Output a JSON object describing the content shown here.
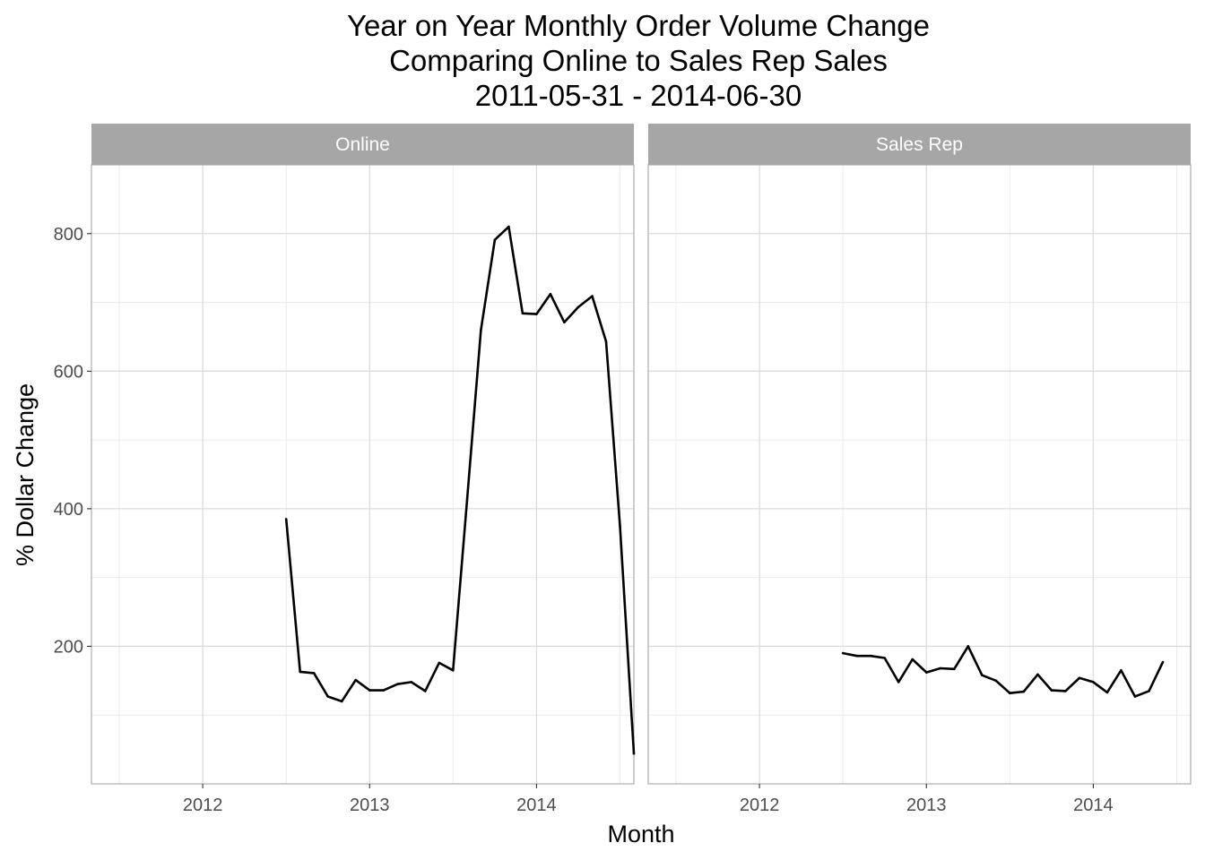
{
  "chart_data": {
    "type": "line",
    "title_lines": [
      "Year on Year Monthly Order Volume Change",
      "Comparing Online to Sales Rep Sales",
      "2011-05-31  -  2014-06-30"
    ],
    "xlabel": "Month",
    "ylabel": "% Dollar Change",
    "x_ticks": [
      "2012",
      "2013",
      "2014"
    ],
    "y_ticks": [
      200,
      400,
      600,
      800
    ],
    "xlim": [
      "2011-05-01",
      "2014-08-01"
    ],
    "ylim": [
      0,
      900
    ],
    "grid": true,
    "line_color": "#000000",
    "strip_color": "#a6a6a6",
    "panels": [
      {
        "name": "Online",
        "x": [
          "2012-06",
          "2012-07",
          "2012-08",
          "2012-09",
          "2012-10",
          "2012-11",
          "2012-12",
          "2013-01",
          "2013-02",
          "2013-03",
          "2013-04",
          "2013-05",
          "2013-06",
          "2013-07",
          "2013-08",
          "2013-09",
          "2013-10",
          "2013-11",
          "2013-12",
          "2014-01",
          "2014-02",
          "2014-03",
          "2014-04",
          "2014-05",
          "2014-06",
          "2014-07"
        ],
        "values": [
          385,
          163,
          161,
          127,
          120,
          151,
          136,
          136,
          145,
          148,
          135,
          176,
          165,
          410,
          660,
          791,
          810,
          684,
          683,
          712,
          671,
          693,
          709,
          643,
          375,
          44
        ]
      },
      {
        "name": "Sales Rep",
        "x": [
          "2012-06",
          "2012-07",
          "2012-08",
          "2012-09",
          "2012-10",
          "2012-11",
          "2012-12",
          "2013-01",
          "2013-02",
          "2013-03",
          "2013-04",
          "2013-05",
          "2013-06",
          "2013-07",
          "2013-08",
          "2013-09",
          "2013-10",
          "2013-11",
          "2013-12",
          "2014-01",
          "2014-02",
          "2014-03",
          "2014-04",
          "2014-05"
        ],
        "values": [
          190,
          186,
          186,
          183,
          148,
          181,
          162,
          168,
          167,
          200,
          158,
          150,
          132,
          134,
          159,
          136,
          135,
          154,
          148,
          133,
          165,
          127,
          135,
          177
        ]
      }
    ]
  }
}
